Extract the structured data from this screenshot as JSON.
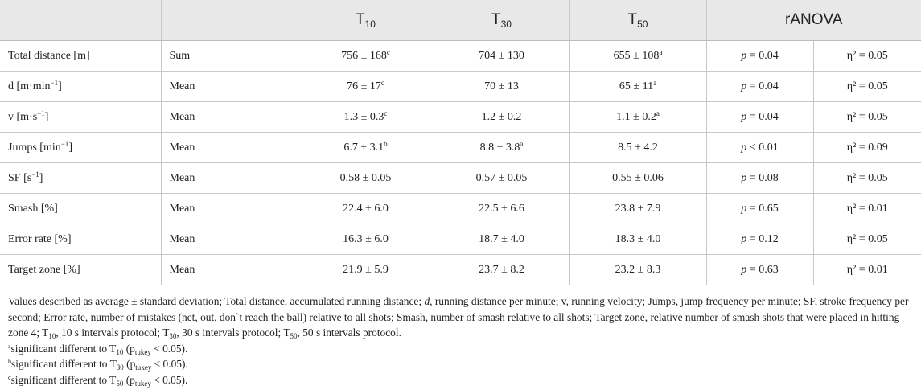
{
  "header": {
    "col0": "",
    "col1": "",
    "t10": {
      "base": "T",
      "sub": "10"
    },
    "t30": {
      "base": "T",
      "sub": "30"
    },
    "t50": {
      "base": "T",
      "sub": "50"
    },
    "ranova": "rANOVA"
  },
  "rows": [
    {
      "measure": "Total distance [m]",
      "measure_sup": "",
      "measure_post": "",
      "type": "Sum",
      "t10": "756 ± 168",
      "t10_sup": "c",
      "t30": "704 ± 130",
      "t30_sup": "",
      "t50": "655 ± 108",
      "t50_sup": "a",
      "p_label": "p",
      "p_rest": " = 0.04",
      "eta": "η² = 0.05"
    },
    {
      "measure": "d [m·min",
      "measure_sup": "−1",
      "measure_post": "]",
      "type": "Mean",
      "t10": "76 ± 17",
      "t10_sup": "c",
      "t30": "70 ± 13",
      "t30_sup": "",
      "t50": "65 ± 11",
      "t50_sup": "a",
      "p_label": "p",
      "p_rest": " = 0.04",
      "eta": "η² = 0.05"
    },
    {
      "measure": "v [m·s",
      "measure_sup": "−1",
      "measure_post": "]",
      "type": "Mean",
      "t10": "1.3 ± 0.3",
      "t10_sup": "c",
      "t30": "1.2 ± 0.2",
      "t30_sup": "",
      "t50": "1.1 ± 0.2",
      "t50_sup": "a",
      "p_label": "p",
      "p_rest": " = 0.04",
      "eta": "η² = 0.05"
    },
    {
      "measure": "Jumps [min",
      "measure_sup": "−1",
      "measure_post": "]",
      "type": "Mean",
      "t10": "6.7 ± 3.1",
      "t10_sup": "b",
      "t30": "8.8 ± 3.8",
      "t30_sup": "a",
      "t50": "8.5 ± 4.2",
      "t50_sup": "",
      "p_label": "p",
      "p_rest": " < 0.01",
      "eta": "η² = 0.09"
    },
    {
      "measure": "SF [s",
      "measure_sup": "−1",
      "measure_post": "]",
      "type": "Mean",
      "t10": "0.58 ± 0.05",
      "t10_sup": "",
      "t30": "0.57 ± 0.05",
      "t30_sup": "",
      "t50": "0.55 ± 0.06",
      "t50_sup": "",
      "p_label": "p",
      "p_rest": " = 0.08",
      "eta": "η² = 0.05"
    },
    {
      "measure": "Smash [%]",
      "measure_sup": "",
      "measure_post": "",
      "type": "Mean",
      "t10": "22.4 ± 6.0",
      "t10_sup": "",
      "t30": "22.5 ± 6.6",
      "t30_sup": "",
      "t50": "23.8 ± 7.9",
      "t50_sup": "",
      "p_label": "p",
      "p_rest": " = 0.65",
      "eta": "η² = 0.01"
    },
    {
      "measure": "Error rate [%]",
      "measure_sup": "",
      "measure_post": "",
      "type": "Mean",
      "t10": "16.3 ± 6.0",
      "t10_sup": "",
      "t30": "18.7 ± 4.0",
      "t30_sup": "",
      "t50": "18.3 ± 4.0",
      "t50_sup": "",
      "p_label": "p",
      "p_rest": " = 0.12",
      "eta": "η² = 0.05"
    },
    {
      "measure": "Target zone [%]",
      "measure_sup": "",
      "measure_post": "",
      "type": "Mean",
      "t10": "21.9 ± 5.9",
      "t10_sup": "",
      "t30": "23.7 ± 8.2",
      "t30_sup": "",
      "t50": "23.2 ± 8.3",
      "t50_sup": "",
      "p_label": "p",
      "p_rest": " = 0.63",
      "eta": "η² = 0.01"
    }
  ],
  "notes": {
    "main_1": "Values described as average ± standard deviation; Total distance, accumulated running distance; ",
    "main_d": "d",
    "main_2": ", running distance per minute; v, running velocity; Jumps, jump frequency per minute; SF, stroke frequency per second; Error rate, number of mistakes (net, out, don`t reach the ball) relative to all shots; Smash, number of smash relative to all shots; Target zone, relative number of smash shots that were placed in hitting zone 4; T",
    "sub10": "10",
    "main_3": ", 10 s intervals protocol; T",
    "sub30": "30",
    "main_4": ", 30 s intervals protocol; T",
    "sub50": "50",
    "main_5": ", 50 s intervals protocol.",
    "footnotes": [
      {
        "mark": "a",
        "text": "significant different to T",
        "sub": "10",
        "pre_p": " (p",
        "psub": "tukey",
        "post": " < 0.05)."
      },
      {
        "mark": "b",
        "text": "significant different to T",
        "sub": "30",
        "pre_p": " (p",
        "psub": "tukey",
        "post": " < 0.05)."
      },
      {
        "mark": "c",
        "text": "significant different to T",
        "sub": "50",
        "pre_p": " (p",
        "psub": "tukey",
        "post": " < 0.05)."
      }
    ]
  }
}
